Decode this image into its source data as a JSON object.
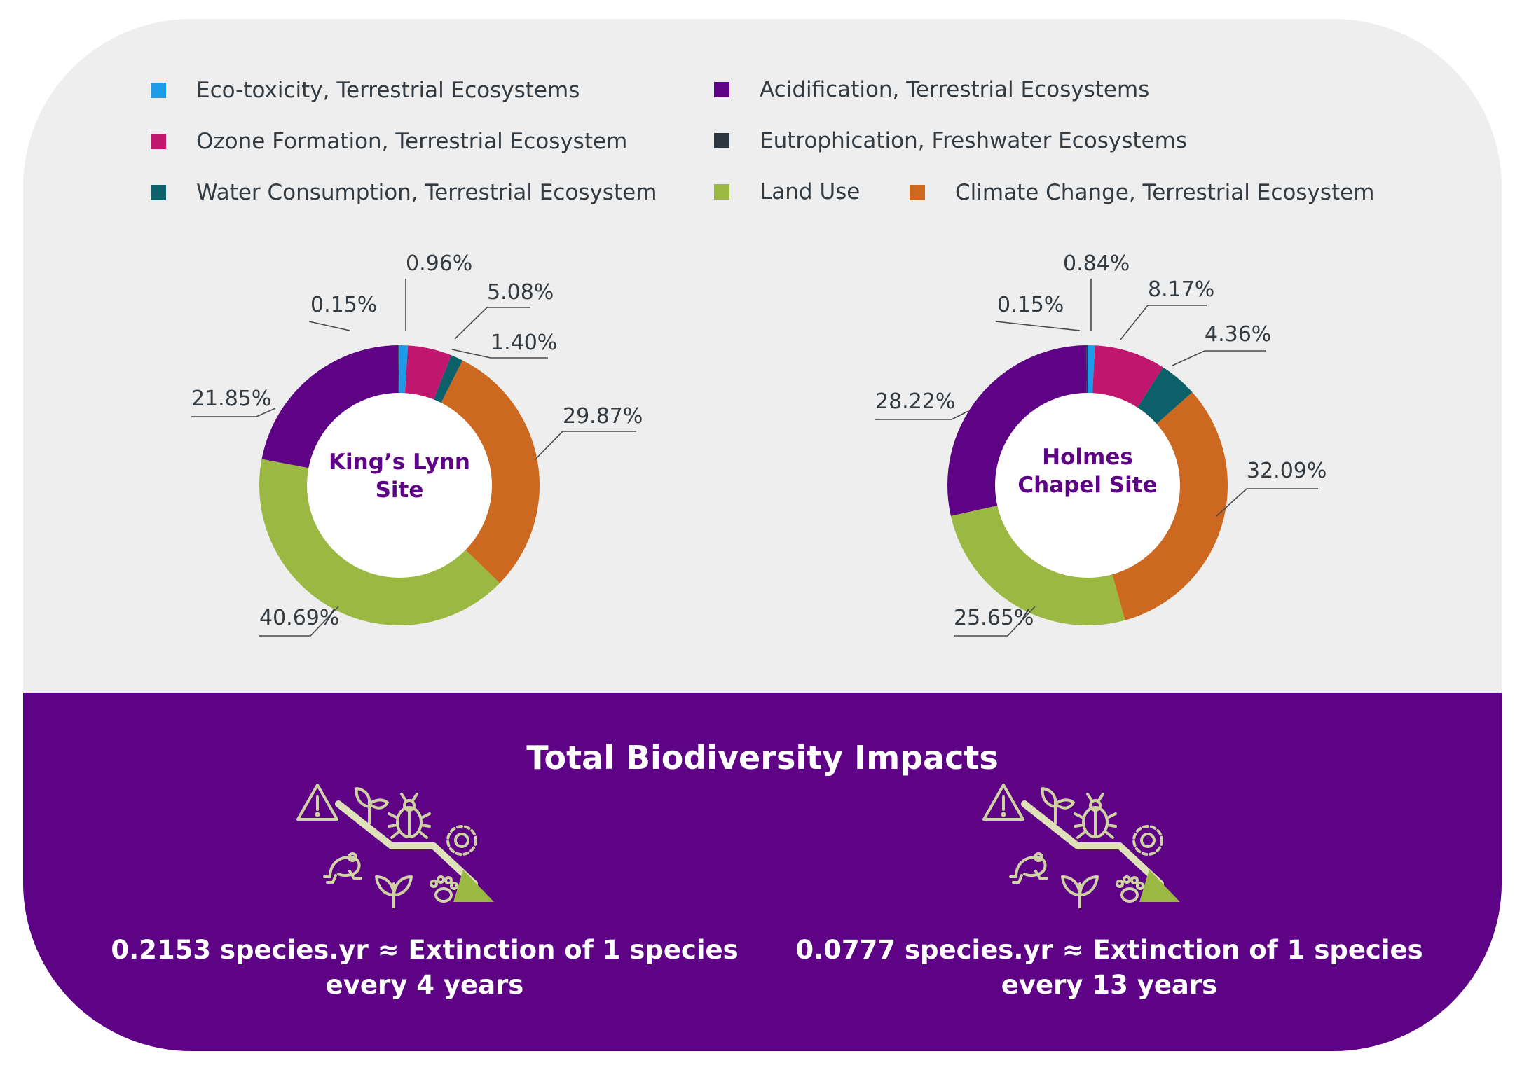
{
  "legend": [
    {
      "label": "Eco-toxicity, Terrestrial Ecosystems",
      "color": "#1e9be8"
    },
    {
      "label": "Acidification, Terrestrial Ecosystems",
      "color": "#5f0386"
    },
    {
      "label": "Ozone Formation, Terrestrial Ecosystem",
      "color": "#c0166e"
    },
    {
      "label": "Eutrophication, Freshwater Ecosystems",
      "color": "#2b3841"
    },
    {
      "label": "Water Consumption, Terrestrial Ecosystem",
      "color": "#0b6069"
    },
    {
      "label": "Land Use",
      "color": "#9bb843"
    },
    {
      "label": "Climate Change, Terrestrial Ecosystem",
      "color": "#cd6821"
    }
  ],
  "chart_data": [
    {
      "type": "pie",
      "donut": true,
      "title": "King’s Lynn Site",
      "title_lines": [
        "King’s Lynn",
        "Site"
      ],
      "slices": [
        {
          "category": "Eco-toxicity, Terrestrial Ecosystems",
          "value": 0.96,
          "label": "0.96%"
        },
        {
          "category": "Ozone Formation, Terrestrial Ecosystem",
          "value": 5.08,
          "label": "5.08%"
        },
        {
          "category": "Water Consumption, Terrestrial Ecosystem",
          "value": 1.4,
          "label": "1.40%"
        },
        {
          "category": "Climate Change, Terrestrial Ecosystem",
          "value": 29.87,
          "label": "29.87%"
        },
        {
          "category": "Land Use",
          "value": 40.69,
          "label": "40.69%"
        },
        {
          "category": "Acidification, Terrestrial Ecosystems",
          "value": 21.85,
          "label": "21.85%"
        },
        {
          "category": "Eutrophication, Freshwater Ecosystems",
          "value": 0.15,
          "label": "0.15%"
        }
      ]
    },
    {
      "type": "pie",
      "donut": true,
      "title": "Holmes Chapel Site",
      "title_lines": [
        "Holmes",
        "Chapel Site"
      ],
      "slices": [
        {
          "category": "Eco-toxicity, Terrestrial Ecosystems",
          "value": 0.84,
          "label": "0.84%"
        },
        {
          "category": "Ozone Formation, Terrestrial Ecosystem",
          "value": 8.17,
          "label": "8.17%"
        },
        {
          "category": "Water Consumption, Terrestrial Ecosystem",
          "value": 4.36,
          "label": "4.36%"
        },
        {
          "category": "Climate Change, Terrestrial Ecosystem",
          "value": 32.09,
          "label": "32.09%"
        },
        {
          "category": "Land Use",
          "value": 25.65,
          "label": "25.65%"
        },
        {
          "category": "Acidification, Terrestrial Ecosystems",
          "value": 28.22,
          "label": "28.22%"
        },
        {
          "category": "Eutrophication, Freshwater Ecosystems",
          "value": 0.15,
          "label": "0.15%"
        }
      ]
    }
  ],
  "impacts": {
    "title": "Total Biodiversity Impacts",
    "sites": [
      {
        "line1": "0.2153 species.yr ≈ Extinction of 1 species",
        "line2": "every 4 years"
      },
      {
        "line1": "0.0777 species.yr ≈ Extinction of 1 species",
        "line2": "every 13 years"
      }
    ],
    "icons": [
      "warning-icon",
      "plant-icon",
      "beetle-icon",
      "flower-icon",
      "frog-icon",
      "seedling-icon",
      "paw-icon",
      "decline-arrow-icon"
    ],
    "icon_color": "#cfd3a3",
    "arrow_color": "#9bb843"
  }
}
